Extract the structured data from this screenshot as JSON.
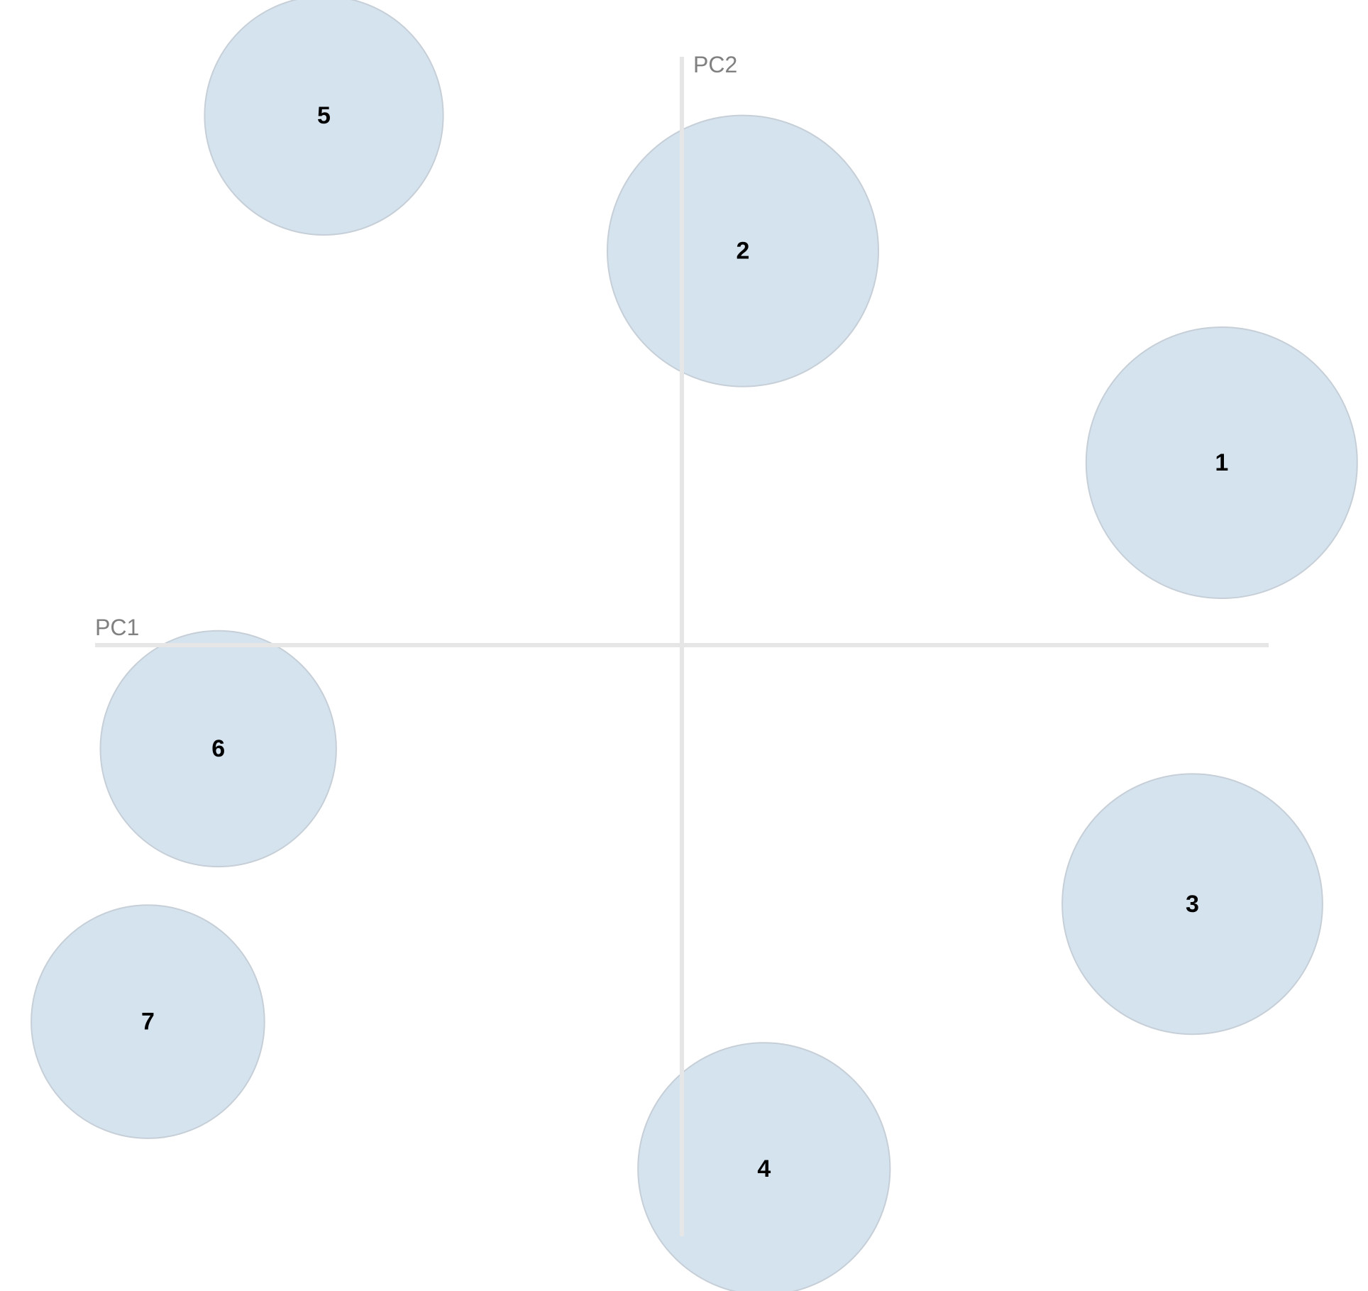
{
  "chart_data": {
    "type": "scatter",
    "title": "",
    "xlabel": "PC1",
    "ylabel": "PC2",
    "xlim": [
      -5.0,
      5.0
    ],
    "ylim": [
      -5.0,
      5.0
    ],
    "grid": false,
    "legend": "none",
    "colors": {
      "bubble_fill": "#d3e2ee",
      "bubble_stroke": "#c6cfd7",
      "axis": "#e6e6e6",
      "axis_label": "#808080",
      "point_label": "#000000"
    },
    "points": [
      {
        "label": "1",
        "x": 4.6,
        "y": 1.55,
        "size": 1.0
      },
      {
        "label": "2",
        "x": 0.52,
        "y": 3.35,
        "size": 1.0
      },
      {
        "label": "3",
        "x": 4.35,
        "y": -2.2,
        "size": 0.96
      },
      {
        "label": "4",
        "x": 0.7,
        "y": -4.45,
        "size": 0.93
      },
      {
        "label": "5",
        "x": -3.05,
        "y": 4.5,
        "size": 0.88
      },
      {
        "label": "6",
        "x": -3.95,
        "y": -0.88,
        "size": 0.87
      },
      {
        "label": "7",
        "x": -4.55,
        "y": -3.2,
        "size": 0.86
      }
    ]
  }
}
